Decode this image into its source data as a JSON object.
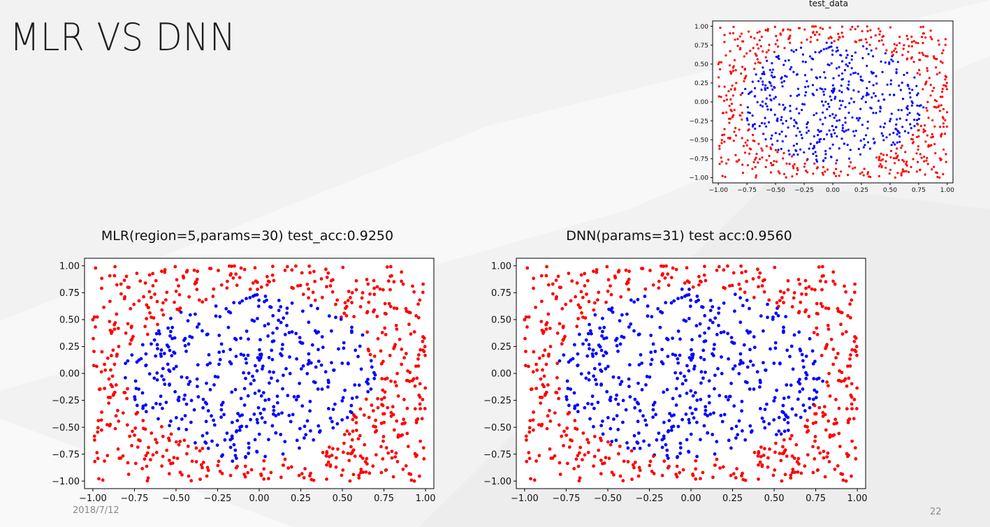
{
  "slide": {
    "title": "MLR VS DNN",
    "date": "2018/7/12",
    "page_number": "22"
  },
  "colors": {
    "class_outer": "#ff0000",
    "class_inner": "#0000ff",
    "background": "#f2f2f2",
    "plot_background": "#ffffff"
  },
  "chart_data": [
    {
      "id": "test_data",
      "type": "scatter",
      "title": "test_data",
      "xlabel": "",
      "ylabel": "",
      "xlim": [
        -1.05,
        1.05
      ],
      "ylim": [
        -1.07,
        1.07
      ],
      "xticks": [
        -1.0,
        -0.75,
        -0.5,
        -0.25,
        0.0,
        0.25,
        0.5,
        0.75,
        1.0
      ],
      "yticks": [
        -1.0,
        -0.75,
        -0.5,
        -0.25,
        0.0,
        0.25,
        0.5,
        0.75,
        1.0
      ],
      "xtick_labels": [
        "−1.00",
        "−0.75",
        "−0.50",
        "−0.25",
        "0.00",
        "0.25",
        "0.50",
        "0.75",
        "1.00"
      ],
      "ytick_labels": [
        "−1.00",
        "−0.75",
        "−0.50",
        "−0.25",
        "0.00",
        "0.25",
        "0.50",
        "0.75",
        "1.00"
      ],
      "grid": false,
      "legend": "none",
      "series_rule": "points uniformly distributed in [-1,1]^2; blue when inside the predicted decision region (roughly a circle of radius ~0.8), red otherwise",
      "num_points": 1000,
      "boundary": {
        "kind": "circle",
        "cx": 0.0,
        "cy": 0.0,
        "r": 0.8
      }
    },
    {
      "id": "mlr",
      "type": "scatter",
      "title": "MLR(region=5,params=30) test_acc:0.9250",
      "xlabel": "",
      "ylabel": "",
      "xlim": [
        -1.05,
        1.05
      ],
      "ylim": [
        -1.07,
        1.07
      ],
      "xticks": [
        -1.0,
        -0.75,
        -0.5,
        -0.25,
        0.0,
        0.25,
        0.5,
        0.75,
        1.0
      ],
      "yticks": [
        -1.0,
        -0.75,
        -0.5,
        -0.25,
        0.0,
        0.25,
        0.5,
        0.75,
        1.0
      ],
      "xtick_labels": [
        "−1.00",
        "−0.75",
        "−0.50",
        "−0.25",
        "0.00",
        "0.25",
        "0.50",
        "0.75",
        "1.00"
      ],
      "ytick_labels": [
        "−1.00",
        "−0.75",
        "−0.50",
        "−0.25",
        "0.00",
        "0.25",
        "0.50",
        "0.75",
        "1.00"
      ],
      "grid": false,
      "legend": "none",
      "num_points": 1000,
      "boundary": {
        "kind": "polygon",
        "vertices": [
          [
            -0.85,
            0.05
          ],
          [
            -0.55,
            0.55
          ],
          [
            0.05,
            0.8
          ],
          [
            0.6,
            0.45
          ],
          [
            0.72,
            -0.05
          ],
          [
            0.4,
            -0.7
          ],
          [
            -0.15,
            -0.85
          ],
          [
            -0.7,
            -0.4
          ]
        ]
      }
    },
    {
      "id": "dnn",
      "type": "scatter",
      "title": "DNN(params=31) test acc:0.9560",
      "xlabel": "",
      "ylabel": "",
      "xlim": [
        -1.05,
        1.05
      ],
      "ylim": [
        -1.07,
        1.07
      ],
      "xticks": [
        -1.0,
        -0.75,
        -0.5,
        -0.25,
        0.0,
        0.25,
        0.5,
        0.75,
        1.0
      ],
      "yticks": [
        -1.0,
        -0.75,
        -0.5,
        -0.25,
        0.0,
        0.25,
        0.5,
        0.75,
        1.0
      ],
      "xtick_labels": [
        "−1.00",
        "−0.75",
        "−0.50",
        "−0.25",
        "0.00",
        "0.25",
        "0.50",
        "0.75",
        "1.00"
      ],
      "ytick_labels": [
        "−1.00",
        "−0.75",
        "−0.50",
        "−0.25",
        "0.00",
        "0.25",
        "0.50",
        "0.75",
        "1.00"
      ],
      "grid": false,
      "legend": "none",
      "num_points": 1000,
      "boundary": {
        "kind": "circle",
        "cx": 0.0,
        "cy": 0.0,
        "r": 0.8
      }
    }
  ]
}
